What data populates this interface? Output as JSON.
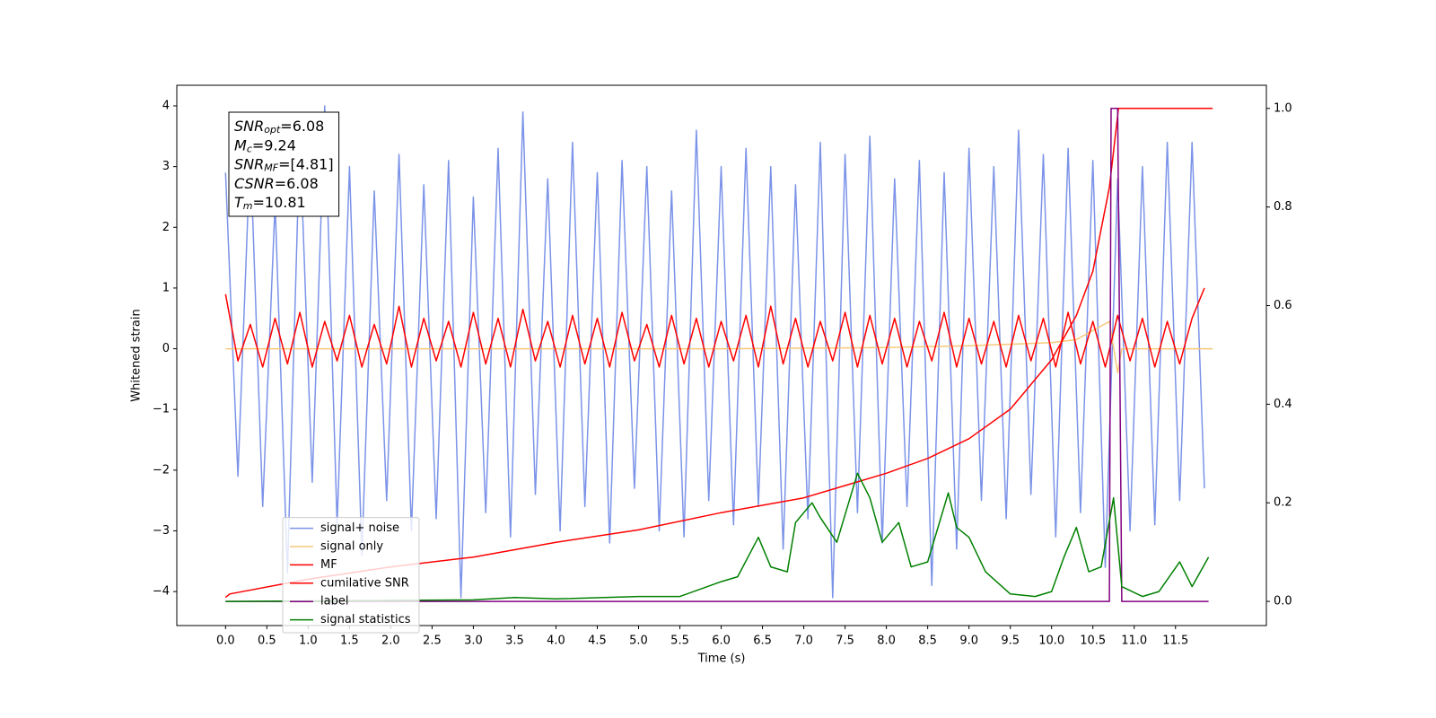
{
  "chart_data": {
    "type": "line",
    "xlabel": "Time (s)",
    "ylabel": "Whitened strain",
    "xlim": [
      -0.59,
      12.6
    ],
    "ylim": [
      -4.56,
      4.34
    ],
    "y2lim": [
      -0.049,
      1.047
    ],
    "xticks": [
      {
        "value": 0,
        "label": "0.0"
      },
      0.5,
      {
        "value": 1,
        "label": "1.0"
      },
      1.5,
      {
        "value": 2,
        "label": "2.0"
      },
      2.5,
      {
        "value": 3,
        "label": "3.0"
      },
      3.5,
      {
        "value": 4,
        "label": "4.0"
      },
      4.5,
      {
        "value": 5,
        "label": "5.0"
      },
      5.5,
      {
        "value": 6,
        "label": "6.0"
      },
      6.5,
      {
        "value": 7,
        "label": "7.0"
      },
      7.5,
      {
        "value": 8,
        "label": "8.0"
      },
      8.5,
      {
        "value": 9,
        "label": "9.0"
      },
      9.5,
      {
        "value": 10,
        "label": "10.0"
      },
      10.5,
      {
        "value": 11,
        "label": "11.0"
      },
      11.5
    ],
    "yticks": [
      {
        "value": -4,
        "label": "−4"
      },
      {
        "value": -3,
        "label": "−3"
      },
      {
        "value": -2,
        "label": "−2"
      },
      {
        "value": -1,
        "label": "−1"
      },
      0,
      1,
      2,
      3,
      4
    ],
    "y2ticks": [
      {
        "value": 0,
        "label": "0.0"
      },
      0.2,
      0.4,
      0.6,
      0.8,
      {
        "value": 1,
        "label": "1.0"
      }
    ],
    "legend": "lower left",
    "annotation": [
      {
        "main": "SNR",
        "sub": "opt",
        "rest": "=6.08"
      },
      {
        "main": "M",
        "sub": "c",
        "rest": "=9.24"
      },
      {
        "main": "SNR",
        "sub": "MF",
        "rest": "=[4.81]"
      },
      {
        "main": "CSNR",
        "rest": "=6.08"
      },
      {
        "main": "T",
        "sub": "m",
        "rest": "=10.81"
      }
    ],
    "series": [
      {
        "name": "signal+ noise",
        "color": "#7b93e8",
        "x": [
          0,
          0.15,
          0.3,
          0.45,
          0.6,
          0.75,
          0.9,
          1.05,
          1.2,
          1.35,
          1.5,
          1.65,
          1.8,
          1.95,
          2.1,
          2.25,
          2.4,
          2.55,
          2.7,
          2.85,
          3,
          3.15,
          3.3,
          3.45,
          3.6,
          3.75,
          3.9,
          4.05,
          4.2,
          4.35,
          4.5,
          4.65,
          4.8,
          4.95,
          5.1,
          5.25,
          5.4,
          5.55,
          5.7,
          5.85,
          6,
          6.15,
          6.3,
          6.45,
          6.6,
          6.75,
          6.9,
          7.05,
          7.2,
          7.35,
          7.5,
          7.65,
          7.8,
          7.95,
          8.1,
          8.25,
          8.4,
          8.55,
          8.7,
          8.85,
          9,
          9.15,
          9.3,
          9.45,
          9.6,
          9.75,
          9.9,
          10.05,
          10.2,
          10.35,
          10.5,
          10.65,
          10.8,
          10.95,
          11.1,
          11.25,
          11.4,
          11.55,
          11.7,
          11.85
        ],
        "values": [
          2.9,
          -2.1,
          3.3,
          -2.6,
          2.4,
          -3.7,
          3.5,
          -2.2,
          4.0,
          -2.9,
          3.0,
          -3.4,
          2.6,
          -2.5,
          3.2,
          -3.0,
          2.7,
          -2.8,
          3.1,
          -4.1,
          2.5,
          -2.7,
          3.3,
          -3.1,
          3.9,
          -2.4,
          2.8,
          -3.0,
          3.4,
          -2.6,
          2.9,
          -3.2,
          3.1,
          -2.3,
          3.0,
          -3.0,
          2.6,
          -3.1,
          3.6,
          -2.5,
          3.0,
          -2.9,
          3.3,
          -2.6,
          3.0,
          -3.3,
          2.7,
          -2.8,
          3.4,
          -4.1,
          3.2,
          -2.7,
          3.5,
          -3.2,
          2.8,
          -2.6,
          3.1,
          -3.9,
          2.9,
          -3.3,
          3.3,
          -2.5,
          3.0,
          -2.8,
          3.6,
          -2.4,
          3.2,
          -3.1,
          3.3,
          -2.7,
          3.1,
          -3.6,
          2.8,
          -3.0,
          3.0,
          -2.9,
          3.4,
          -2.5,
          3.4,
          -2.3
        ]
      },
      {
        "name": "signal only",
        "color": "#f6c87a",
        "x": [
          0,
          2,
          4,
          6,
          8,
          9,
          10,
          10.3,
          10.5,
          10.7,
          10.8,
          10.85,
          11,
          11.95
        ],
        "values": [
          0,
          0,
          0,
          0,
          0.02,
          0.05,
          0.1,
          0.15,
          0.3,
          0.45,
          -0.4,
          0,
          0,
          0
        ]
      },
      {
        "name": "MF",
        "color": "#ff0000",
        "x": [
          0,
          0.15,
          0.3,
          0.45,
          0.6,
          0.75,
          0.9,
          1.05,
          1.2,
          1.35,
          1.5,
          1.65,
          1.8,
          1.95,
          2.1,
          2.25,
          2.4,
          2.55,
          2.7,
          2.85,
          3,
          3.15,
          3.3,
          3.45,
          3.6,
          3.75,
          3.9,
          4.05,
          4.2,
          4.35,
          4.5,
          4.65,
          4.8,
          4.95,
          5.1,
          5.25,
          5.4,
          5.55,
          5.7,
          5.85,
          6,
          6.15,
          6.3,
          6.45,
          6.6,
          6.75,
          6.9,
          7.05,
          7.2,
          7.35,
          7.5,
          7.65,
          7.8,
          7.95,
          8.1,
          8.25,
          8.4,
          8.55,
          8.7,
          8.85,
          9,
          9.15,
          9.3,
          9.45,
          9.6,
          9.75,
          9.9,
          10.05,
          10.2,
          10.35,
          10.5,
          10.65,
          10.8,
          10.95,
          11.1,
          11.25,
          11.4,
          11.55,
          11.7,
          11.85
        ],
        "values": [
          0.9,
          -0.2,
          0.4,
          -0.3,
          0.5,
          -0.25,
          0.6,
          -0.3,
          0.45,
          -0.2,
          0.55,
          -0.3,
          0.4,
          -0.25,
          0.7,
          -0.3,
          0.5,
          -0.2,
          0.45,
          -0.3,
          0.6,
          -0.25,
          0.5,
          -0.3,
          0.65,
          -0.2,
          0.45,
          -0.3,
          0.55,
          -0.25,
          0.5,
          -0.3,
          0.6,
          -0.2,
          0.4,
          -0.3,
          0.55,
          -0.25,
          0.5,
          -0.3,
          0.45,
          -0.2,
          0.55,
          -0.3,
          0.7,
          -0.25,
          0.5,
          -0.3,
          0.45,
          -0.2,
          0.6,
          -0.3,
          0.55,
          -0.25,
          0.5,
          -0.3,
          0.45,
          -0.2,
          0.6,
          -0.3,
          0.5,
          -0.25,
          0.45,
          -0.3,
          0.55,
          -0.2,
          0.5,
          -0.3,
          0.6,
          -0.25,
          0.45,
          -0.3,
          0.55,
          -0.2,
          0.5,
          -0.3,
          0.45,
          -0.25,
          0.5,
          1.0
        ]
      },
      {
        "name": "cumilative SNR",
        "color": "#ff0000",
        "axis": "y2",
        "x": [
          0,
          0.05,
          1,
          2,
          3,
          4,
          5,
          6,
          7,
          7.5,
          8,
          8.5,
          9,
          9.5,
          10,
          10.3,
          10.5,
          10.7,
          10.81,
          10.85,
          11.95
        ],
        "values": [
          0.008,
          0.015,
          0.045,
          0.07,
          0.09,
          0.12,
          0.145,
          0.18,
          0.21,
          0.235,
          0.26,
          0.29,
          0.33,
          0.39,
          0.49,
          0.58,
          0.67,
          0.84,
          1.0,
          1.0,
          1.0
        ]
      },
      {
        "name": "label",
        "color": "#800080",
        "axis": "y2",
        "x": [
          0,
          10.7,
          10.72,
          10.8,
          10.85,
          11.9
        ],
        "values": [
          0,
          0,
          1,
          1,
          0,
          0
        ]
      },
      {
        "name": "signal statistics",
        "color": "#008000",
        "axis": "y2",
        "x": [
          0,
          2,
          3,
          3.5,
          4,
          5,
          5.5,
          6,
          6.2,
          6.45,
          6.6,
          6.8,
          6.9,
          7.1,
          7.2,
          7.4,
          7.65,
          7.8,
          7.95,
          8.15,
          8.3,
          8.5,
          8.75,
          8.85,
          9.0,
          9.2,
          9.5,
          9.8,
          10.0,
          10.15,
          10.3,
          10.45,
          10.6,
          10.75,
          10.85,
          11.1,
          11.3,
          11.55,
          11.7,
          11.9
        ],
        "values": [
          0,
          0.002,
          0.003,
          0.008,
          0.005,
          0.01,
          0.01,
          0.04,
          0.05,
          0.13,
          0.07,
          0.06,
          0.16,
          0.2,
          0.17,
          0.12,
          0.26,
          0.21,
          0.12,
          0.16,
          0.07,
          0.08,
          0.22,
          0.15,
          0.13,
          0.06,
          0.015,
          0.01,
          0.02,
          0.09,
          0.15,
          0.06,
          0.07,
          0.21,
          0.03,
          0.01,
          0.02,
          0.08,
          0.03,
          0.09
        ]
      }
    ]
  }
}
